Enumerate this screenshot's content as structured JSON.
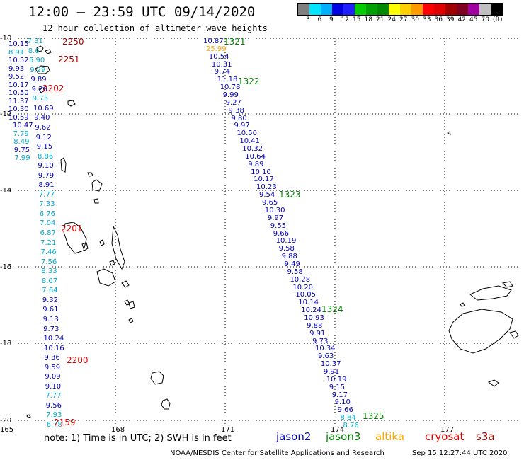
{
  "header": {
    "title": "12:00 – 23:59 UTC 09/14/2020",
    "subtitle": "12 hour collection of altimeter wave heights"
  },
  "legend_scale": {
    "colors": [
      "#808080",
      "#00e5ff",
      "#00b0ff",
      "#0000e0",
      "#2020ff",
      "#00cc00",
      "#00a000",
      "#008800",
      "#ffff00",
      "#ffd000",
      "#ff9900",
      "#ff0000",
      "#e00000",
      "#a00000",
      "#800020",
      "#a000a0",
      "#c0c0c0",
      "#000000"
    ],
    "labels": [
      "3",
      "6",
      "9",
      "12",
      "15",
      "18",
      "21",
      "24",
      "27",
      "30",
      "33",
      "36",
      "39",
      "42",
      "45",
      "70",
      "(ft)"
    ]
  },
  "axes": {
    "lon_labels": [
      "165",
      "168",
      "171",
      "174",
      "177"
    ],
    "lat_labels": [
      "-10",
      "-12",
      "-14",
      "-16",
      "-18",
      "-20"
    ]
  },
  "colors": {
    "jason2": "#0000c0",
    "jason3": "#008000",
    "altika": "#ffa500",
    "cryosat": "#e00000",
    "s3a": "#a00000",
    "light": "#00aacc"
  },
  "tracks": {
    "east": [
      {
        "v": "10.87",
        "c": "jason2"
      },
      {
        "v": "25.99",
        "c": "altika"
      },
      {
        "v": "10.54",
        "c": "jason2"
      },
      {
        "v": "10.31",
        "c": "jason2"
      },
      {
        "v": "9.74",
        "c": "jason2"
      },
      {
        "v": "11.18",
        "c": "jason2"
      },
      {
        "v": "10.78",
        "c": "jason2"
      },
      {
        "v": "9.99",
        "c": "jason2"
      },
      {
        "v": "9.27",
        "c": "jason2"
      },
      {
        "v": "9.38",
        "c": "jason2"
      },
      {
        "v": "9.80",
        "c": "jason2"
      },
      {
        "v": "9.97",
        "c": "jason2"
      },
      {
        "v": "10.50",
        "c": "jason2"
      },
      {
        "v": "10.41",
        "c": "jason2"
      },
      {
        "v": "10.32",
        "c": "jason2"
      },
      {
        "v": "10.64",
        "c": "jason2"
      },
      {
        "v": "9.89",
        "c": "jason2"
      },
      {
        "v": "10.10",
        "c": "jason2"
      },
      {
        "v": "10.17",
        "c": "jason2"
      },
      {
        "v": "10.23",
        "c": "jason2"
      },
      {
        "v": "9.54",
        "c": "jason2"
      },
      {
        "v": "9.65",
        "c": "jason2"
      },
      {
        "v": "10.30",
        "c": "jason2"
      },
      {
        "v": "9.97",
        "c": "jason2"
      },
      {
        "v": "9.55",
        "c": "jason2"
      },
      {
        "v": "9.66",
        "c": "jason2"
      },
      {
        "v": "10.19",
        "c": "jason2"
      },
      {
        "v": "9.58",
        "c": "jason2"
      },
      {
        "v": "9.88",
        "c": "jason2"
      },
      {
        "v": "9.49",
        "c": "jason2"
      },
      {
        "v": "9.58",
        "c": "jason2"
      },
      {
        "v": "10.28",
        "c": "jason2"
      },
      {
        "v": "10.20",
        "c": "jason2"
      },
      {
        "v": "10.05",
        "c": "jason2"
      },
      {
        "v": "10.14",
        "c": "jason2"
      },
      {
        "v": "10.24",
        "c": "jason2"
      },
      {
        "v": "10.93",
        "c": "jason2"
      },
      {
        "v": "9.88",
        "c": "jason2"
      },
      {
        "v": "9.91",
        "c": "jason2"
      },
      {
        "v": "9.73",
        "c": "jason2"
      },
      {
        "v": "10.34",
        "c": "jason2"
      },
      {
        "v": "9.63",
        "c": "jason2"
      },
      {
        "v": "10.37",
        "c": "jason2"
      },
      {
        "v": "9.91",
        "c": "jason2"
      },
      {
        "v": "10.19",
        "c": "jason2"
      },
      {
        "v": "9.15",
        "c": "jason2"
      },
      {
        "v": "9.17",
        "c": "jason2"
      },
      {
        "v": "9.10",
        "c": "jason2"
      },
      {
        "v": "9.66",
        "c": "jason2"
      },
      {
        "v": "8.84",
        "c": "light"
      },
      {
        "v": "8.76",
        "c": "light"
      }
    ],
    "west_left": [
      {
        "v": "10.15",
        "c": "jason2"
      },
      {
        "v": "8.91",
        "c": "light"
      },
      {
        "v": "10.52",
        "c": "jason2"
      },
      {
        "v": "9.93",
        "c": "jason2"
      },
      {
        "v": "9.52",
        "c": "jason2"
      },
      {
        "v": "10.17",
        "c": "jason2"
      },
      {
        "v": "10.50",
        "c": "jason2"
      },
      {
        "v": "11.37",
        "c": "jason2"
      },
      {
        "v": "10.30",
        "c": "jason2"
      },
      {
        "v": "10.59",
        "c": "jason2"
      },
      {
        "v": "10.47",
        "c": "jason2"
      },
      {
        "v": "7.79",
        "c": "light"
      },
      {
        "v": "8.49",
        "c": "light"
      },
      {
        "v": "9.75",
        "c": "jason2"
      },
      {
        "v": "7.99",
        "c": "light"
      }
    ],
    "west_mid": [
      {
        "v": "7.31",
        "c": "light"
      },
      {
        "v": "8.6",
        "c": "light"
      },
      {
        "v": "5.90",
        "c": "light"
      },
      {
        "v": "9.29",
        "c": "light"
      },
      {
        "v": "9.89",
        "c": "jason2"
      },
      {
        "v": "9.26",
        "c": "jason2"
      },
      {
        "v": "9.73",
        "c": "light"
      },
      {
        "v": "10.69",
        "c": "jason2"
      },
      {
        "v": "9.40",
        "c": "jason2"
      },
      {
        "v": "9.62",
        "c": "jason2"
      },
      {
        "v": "9.12",
        "c": "jason2"
      },
      {
        "v": "9.15",
        "c": "jason2"
      },
      {
        "v": "8.86",
        "c": "light"
      },
      {
        "v": "9.10",
        "c": "jason2"
      },
      {
        "v": "9.79",
        "c": "jason2"
      },
      {
        "v": "8.91",
        "c": "jason2"
      },
      {
        "v": "7.77",
        "c": "light"
      },
      {
        "v": "7.33",
        "c": "light"
      },
      {
        "v": "6.76",
        "c": "light"
      },
      {
        "v": "7.04",
        "c": "light"
      },
      {
        "v": "6.87",
        "c": "light"
      },
      {
        "v": "7.21",
        "c": "light"
      },
      {
        "v": "7.46",
        "c": "light"
      },
      {
        "v": "7.56",
        "c": "light"
      },
      {
        "v": "8.33",
        "c": "light"
      },
      {
        "v": "8.07",
        "c": "light"
      },
      {
        "v": "7.64",
        "c": "light"
      },
      {
        "v": "9.32",
        "c": "jason2"
      },
      {
        "v": "9.61",
        "c": "jason2"
      },
      {
        "v": "9.13",
        "c": "jason2"
      },
      {
        "v": "9.73",
        "c": "jason2"
      },
      {
        "v": "10.24",
        "c": "jason2"
      },
      {
        "v": "10.16",
        "c": "jason2"
      },
      {
        "v": "9.36",
        "c": "jason2"
      },
      {
        "v": "9.59",
        "c": "jason2"
      },
      {
        "v": "9.09",
        "c": "jason2"
      },
      {
        "v": "9.10",
        "c": "jason2"
      },
      {
        "v": "7.77",
        "c": "light"
      },
      {
        "v": "9.56",
        "c": "jason2"
      },
      {
        "v": "7.93",
        "c": "light"
      },
      {
        "v": "6.78",
        "c": "light"
      }
    ]
  },
  "times": [
    {
      "t": "1321",
      "c": "jason3"
    },
    {
      "t": "1322",
      "c": "jason3"
    },
    {
      "t": "1323",
      "c": "jason3"
    },
    {
      "t": "1324",
      "c": "jason3"
    },
    {
      "t": "1325",
      "c": "jason3"
    },
    {
      "t": "2250",
      "c": "s3a"
    },
    {
      "t": "2251",
      "c": "s3a"
    },
    {
      "t": "2202",
      "c": "cryosat"
    },
    {
      "t": "2201",
      "c": "cryosat"
    },
    {
      "t": "2200",
      "c": "cryosat"
    },
    {
      "t": "2159",
      "c": "cryosat"
    }
  ],
  "footer": {
    "note": "note: 1) Time is in UTC; 2) SWH is in feet",
    "satellites": [
      {
        "name": "jason2",
        "c": "jason2"
      },
      {
        "name": "jason3",
        "c": "jason3"
      },
      {
        "name": "altika",
        "c": "altika"
      },
      {
        "name": "cryosat",
        "c": "cryosat"
      },
      {
        "name": "s3a",
        "c": "s3a"
      }
    ],
    "credit": "NOAA/NESDIS Center for Satellite Applications and Research",
    "stamp": "Sep 15 12:27:44 UTC 2020"
  }
}
